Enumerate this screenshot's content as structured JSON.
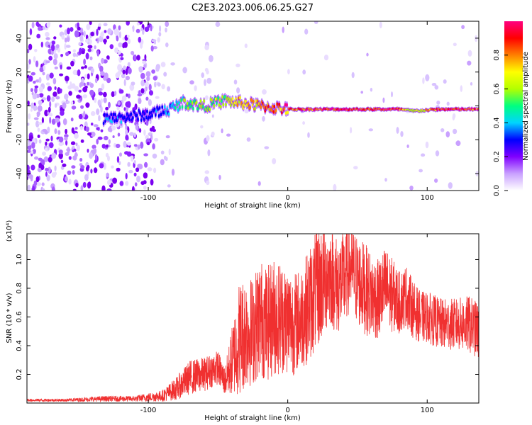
{
  "title": "C2E3.2023.006.06.25.G27",
  "chart_data": [
    {
      "type": "heatmap",
      "xlabel": "Height of straight line (km)",
      "ylabel": "Frequency (Hz)",
      "xlim": [
        -187,
        137
      ],
      "ylim": [
        -50,
        50
      ],
      "xticks": [
        -100,
        0,
        100
      ],
      "yticks": [
        -40,
        -20,
        0,
        20,
        40
      ],
      "colorbar": {
        "label": "Normalized spectral amplitude",
        "range": [
          0,
          1
        ],
        "ticks": [
          0.0,
          0.2,
          0.4,
          0.6,
          0.8
        ],
        "colors": [
          "#ffffff",
          "#c9a0ff",
          "#8000ff",
          "#0000ff",
          "#00d5ff",
          "#00ff80",
          "#b3ff00",
          "#ffff00",
          "#ff8000",
          "#ff0000",
          "#ff0080"
        ]
      },
      "signal_track": [
        {
          "x": -132,
          "y": -8,
          "amp": 0.35
        },
        {
          "x": -100,
          "y": -5,
          "amp": 0.3
        },
        {
          "x": -85,
          "y": -2,
          "amp": 0.4
        },
        {
          "x": -75,
          "y": 2,
          "amp": 0.55
        },
        {
          "x": -60,
          "y": 0,
          "amp": 0.6
        },
        {
          "x": -45,
          "y": 3,
          "amp": 0.6
        },
        {
          "x": -35,
          "y": 2,
          "amp": 0.75
        },
        {
          "x": -20,
          "y": 0,
          "amp": 0.8
        },
        {
          "x": -10,
          "y": -1,
          "amp": 0.85
        },
        {
          "x": 0,
          "y": -2,
          "amp": 0.9
        },
        {
          "x": 20,
          "y": -2,
          "amp": 0.9
        },
        {
          "x": 50,
          "y": -2,
          "amp": 0.95
        },
        {
          "x": 80,
          "y": -2,
          "amp": 0.95
        },
        {
          "x": 90,
          "y": -3,
          "amp": 0.6
        },
        {
          "x": 110,
          "y": -2,
          "amp": 0.95
        },
        {
          "x": 137,
          "y": -2,
          "amp": 0.9
        }
      ]
    },
    {
      "type": "line",
      "xlabel": "Height of straight line (km)",
      "ylabel": "SNR (10 * v/v)",
      "yexponent": "(x10⁴)",
      "xlim": [
        -187,
        137
      ],
      "ylim": [
        0,
        1.18
      ],
      "xticks": [
        -100,
        0,
        100
      ],
      "yticks": [
        0.2,
        0.4,
        0.6,
        0.8,
        1.0
      ],
      "color": "#f03030",
      "series": [
        {
          "x": [
            -187,
            -160,
            -130,
            -110,
            -90,
            -80,
            -70,
            -60,
            -50,
            -45,
            -38,
            -35,
            -30,
            -25,
            -20,
            -15,
            -10,
            -5,
            0,
            5,
            10,
            15,
            20,
            25,
            30,
            35,
            40,
            45,
            50,
            55,
            60,
            65,
            70,
            75,
            80,
            85,
            90,
            95,
            100,
            110,
            120,
            130,
            137
          ],
          "y": [
            0.02,
            0.02,
            0.03,
            0.03,
            0.05,
            0.1,
            0.18,
            0.2,
            0.25,
            0.15,
            0.35,
            0.45,
            0.5,
            0.5,
            0.6,
            0.55,
            0.6,
            0.6,
            0.58,
            0.55,
            0.6,
            0.68,
            0.78,
            0.85,
            0.9,
            0.82,
            0.85,
            0.95,
            0.85,
            0.8,
            0.75,
            0.72,
            0.8,
            0.75,
            0.7,
            0.75,
            0.65,
            0.6,
            0.6,
            0.55,
            0.55,
            0.55,
            0.5
          ],
          "spread": [
            0.01,
            0.01,
            0.02,
            0.02,
            0.04,
            0.08,
            0.12,
            0.12,
            0.12,
            0.1,
            0.3,
            0.4,
            0.4,
            0.38,
            0.42,
            0.4,
            0.42,
            0.4,
            0.38,
            0.36,
            0.36,
            0.4,
            0.42,
            0.42,
            0.35,
            0.35,
            0.34,
            0.3,
            0.32,
            0.32,
            0.3,
            0.28,
            0.3,
            0.26,
            0.22,
            0.22,
            0.2,
            0.18,
            0.18,
            0.18,
            0.18,
            0.2,
            0.2
          ]
        }
      ]
    }
  ]
}
